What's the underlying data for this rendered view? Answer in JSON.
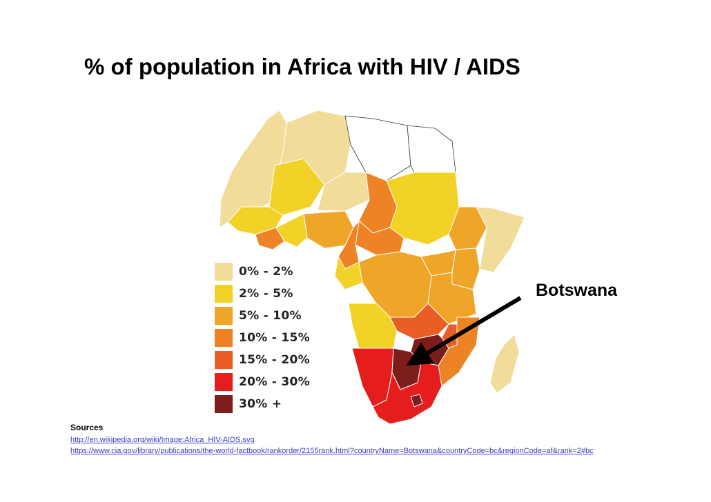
{
  "title": "% of population in Africa with HIV / AIDS",
  "legend": [
    {
      "label": "0% - 2%",
      "color": "#f1dc9a"
    },
    {
      "label": "2% - 5%",
      "color": "#f2d227"
    },
    {
      "label": "5% - 10%",
      "color": "#efa528"
    },
    {
      "label": "10% - 15%",
      "color": "#ed8324"
    },
    {
      "label": "15% - 20%",
      "color": "#ea5e25"
    },
    {
      "label": "20% - 30%",
      "color": "#e51d1d"
    },
    {
      "label": "30% +",
      "color": "#7d1d1b"
    }
  ],
  "callout": {
    "label": "Botswana"
  },
  "sources": {
    "heading": "Sources",
    "links": [
      "http://en.wikipedia.org/wiki/Image:Africa_HIV-AIDS.svg",
      "https://www.cia.gov/library/publications/the-world-factbook/rankorder/2155rank.html?countryName=Botswana&countryCode=bc&regionCode=af&rank=2#bc"
    ]
  }
}
